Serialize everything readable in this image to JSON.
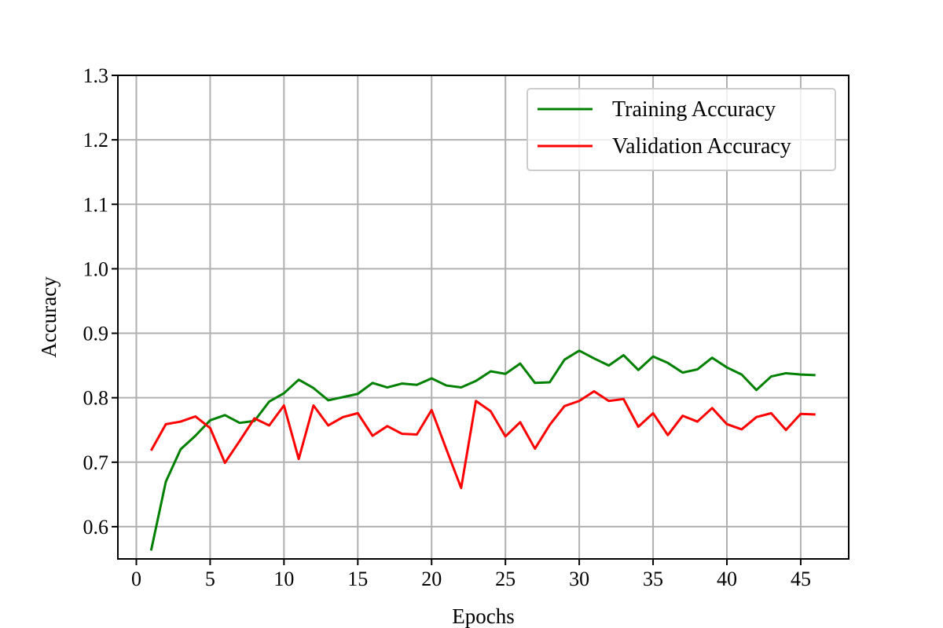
{
  "chart_data": {
    "type": "line",
    "title": "",
    "xlabel": "Epochs",
    "ylabel": "Accuracy",
    "xlim": [
      -1.25,
      48.25
    ],
    "ylim": [
      0.55,
      1.3
    ],
    "x_ticks": [
      0,
      5,
      10,
      15,
      20,
      25,
      30,
      35,
      40,
      45
    ],
    "x_tick_labels": [
      "0",
      "5",
      "10",
      "15",
      "20",
      "25",
      "30",
      "35",
      "40",
      "45"
    ],
    "y_ticks": [
      0.6,
      0.7,
      0.8,
      0.9,
      1.0,
      1.1,
      1.2,
      1.3
    ],
    "y_tick_labels": [
      "0.6",
      "0.7",
      "0.8",
      "0.9",
      "1.0",
      "1.1",
      "1.2",
      "1.3"
    ],
    "grid": true,
    "legend_position": "top-right",
    "x": [
      1,
      2,
      3,
      4,
      5,
      6,
      7,
      8,
      9,
      10,
      11,
      12,
      13,
      14,
      15,
      16,
      17,
      18,
      19,
      20,
      21,
      22,
      23,
      24,
      25,
      26,
      27,
      28,
      29,
      30,
      31,
      32,
      33,
      34,
      35,
      36,
      37,
      38,
      39,
      40,
      41,
      42,
      43,
      44,
      45,
      46
    ],
    "series": [
      {
        "name": "Training Accuracy",
        "color": "#008000",
        "values": [
          0.563,
          0.67,
          0.72,
          0.741,
          0.765,
          0.773,
          0.761,
          0.764,
          0.794,
          0.807,
          0.828,
          0.815,
          0.796,
          0.801,
          0.806,
          0.823,
          0.816,
          0.822,
          0.82,
          0.83,
          0.819,
          0.816,
          0.826,
          0.841,
          0.837,
          0.853,
          0.823,
          0.824,
          0.859,
          0.873,
          0.861,
          0.85,
          0.866,
          0.843,
          0.864,
          0.854,
          0.839,
          0.844,
          0.862,
          0.847,
          0.836,
          0.812,
          0.833,
          0.838,
          0.836,
          0.835
        ]
      },
      {
        "name": "Validation Accuracy",
        "color": "#ff0000",
        "values": [
          0.718,
          0.759,
          0.763,
          0.771,
          0.753,
          0.699,
          0.733,
          0.768,
          0.757,
          0.788,
          0.705,
          0.788,
          0.757,
          0.77,
          0.776,
          0.741,
          0.756,
          0.744,
          0.743,
          0.781,
          0.72,
          0.66,
          0.795,
          0.779,
          0.74,
          0.762,
          0.721,
          0.758,
          0.787,
          0.795,
          0.81,
          0.795,
          0.798,
          0.755,
          0.776,
          0.742,
          0.772,
          0.763,
          0.784,
          0.759,
          0.751,
          0.77,
          0.776,
          0.75,
          0.775,
          0.774
        ]
      }
    ]
  }
}
